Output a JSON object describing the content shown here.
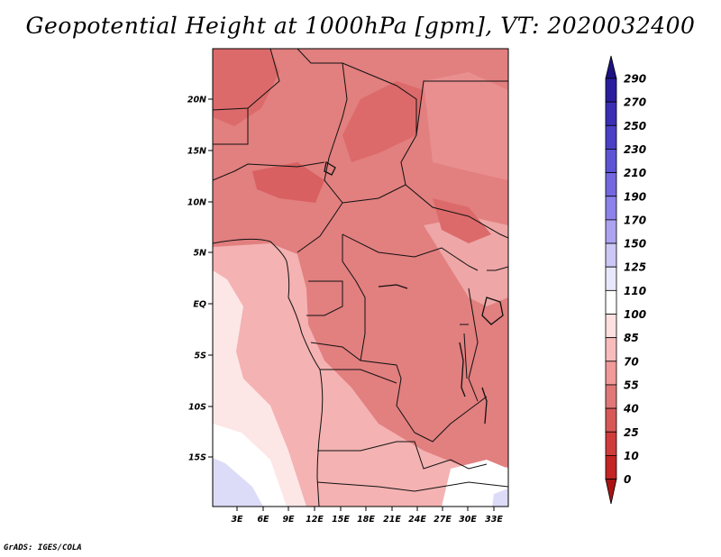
{
  "title": "Geopotential Height at 1000hPa [gpm], VT: 2020032400",
  "credit": "GrADS: IGES/COLA",
  "map": {
    "variable": "Geopotential Height",
    "level": "1000hPa",
    "units": "gpm",
    "valid_time": "2020032400",
    "lat_range": [
      -20,
      25
    ],
    "lon_range": [
      0,
      34
    ],
    "lat_ticks": [
      "20N",
      "15N",
      "10N",
      "5N",
      "EQ",
      "5S",
      "10S",
      "15S"
    ],
    "lon_ticks": [
      "3E",
      "6E",
      "9E",
      "12E",
      "15E",
      "18E",
      "21E",
      "24E",
      "27E",
      "30E",
      "33E"
    ]
  },
  "colorbar": {
    "labels": [
      "290",
      "270",
      "250",
      "230",
      "210",
      "190",
      "170",
      "150",
      "125",
      "110",
      "100",
      "85",
      "70",
      "55",
      "40",
      "25",
      "10",
      "0"
    ],
    "colors": [
      "#1c1280",
      "#2a1e9e",
      "#3a2fb4",
      "#4a40c6",
      "#5c54d4",
      "#7468e0",
      "#8c82ea",
      "#aca4f0",
      "#ccc8f6",
      "#e8e8fc",
      "#ffffff",
      "#fde0e0",
      "#f8bcbc",
      "#f09a9a",
      "#e07878",
      "#d85858",
      "#d03c3c",
      "#c42424",
      "#a81414"
    ]
  }
}
